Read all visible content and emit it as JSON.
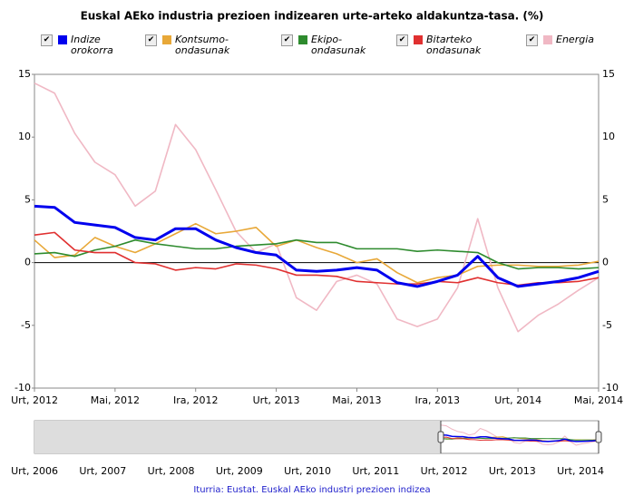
{
  "chart_data": {
    "type": "line",
    "title": "Euskal AEko industria prezioen indizearen urte-arteko aldakuntza-tasa. (%)",
    "categories": [
      "Urt, 2012",
      null,
      null,
      null,
      "Mai, 2012",
      null,
      null,
      null,
      "Ira, 2012",
      null,
      null,
      null,
      "Urt, 2013",
      null,
      null,
      null,
      "Mai, 2013",
      null,
      null,
      null,
      "Ira, 2013",
      null,
      null,
      null,
      "Urt, 2014",
      null,
      null,
      null,
      "Mai, 2014"
    ],
    "series": [
      {
        "name": "Indize orokorra",
        "color": "#0000ee",
        "values": [
          4.5,
          4.4,
          3.2,
          3.0,
          2.8,
          2.0,
          1.8,
          2.7,
          2.7,
          1.8,
          1.2,
          0.8,
          0.6,
          -0.6,
          -0.7,
          -0.6,
          -0.4,
          -0.6,
          -1.6,
          -1.9,
          -1.5,
          -1.0,
          0.5,
          -1.2,
          -1.9,
          -1.7,
          -1.5,
          -1.2,
          -0.7
        ]
      },
      {
        "name": "Kontsumo-ondasunak",
        "color": "#e8a838",
        "values": [
          1.8,
          0.4,
          0.6,
          2.0,
          1.3,
          0.8,
          1.5,
          2.3,
          3.1,
          2.3,
          2.5,
          2.8,
          1.3,
          1.8,
          1.2,
          0.7,
          0.0,
          0.3,
          -0.8,
          -1.6,
          -1.2,
          -1.0,
          -0.3,
          -0.2,
          -0.2,
          -0.3,
          -0.3,
          -0.2,
          0.1
        ]
      },
      {
        "name": "Ekipo-ondasunak",
        "color": "#2e8b2e",
        "values": [
          0.7,
          0.8,
          0.5,
          1.0,
          1.3,
          1.8,
          1.5,
          1.3,
          1.1,
          1.1,
          1.3,
          1.4,
          1.5,
          1.8,
          1.6,
          1.6,
          1.1,
          1.1,
          1.1,
          0.9,
          1.0,
          0.9,
          0.8,
          0.0,
          -0.5,
          -0.4,
          -0.4,
          -0.5,
          -0.4
        ]
      },
      {
        "name": "Bitarteko ondasunak",
        "color": "#e03030",
        "values": [
          2.2,
          2.4,
          1.0,
          0.8,
          0.8,
          0.0,
          -0.1,
          -0.6,
          -0.4,
          -0.5,
          -0.1,
          -0.2,
          -0.5,
          -1.0,
          -1.0,
          -1.1,
          -1.5,
          -1.6,
          -1.7,
          -1.7,
          -1.5,
          -1.6,
          -1.2,
          -1.6,
          -1.8,
          -1.6,
          -1.6,
          -1.5,
          -1.2
        ]
      },
      {
        "name": "Energia",
        "color": "#f0b8c4",
        "values": [
          14.3,
          13.5,
          10.3,
          8.0,
          7.0,
          4.5,
          5.7,
          11.0,
          9.0,
          5.8,
          2.5,
          0.8,
          1.5,
          -2.8,
          -3.8,
          -1.5,
          -1.0,
          -1.7,
          -4.5,
          -5.1,
          -4.5,
          -2.0,
          3.5,
          -2.0,
          -5.5,
          -4.2,
          -3.3,
          -2.2,
          -1.2
        ]
      }
    ],
    "ylim": [
      -10,
      15
    ],
    "yticks": [
      -10,
      -5,
      0,
      5,
      10,
      15
    ],
    "navigator": {
      "labels": [
        "Urt, 2006",
        "Urt, 2007",
        "Urt, 2008",
        "Urt, 2009",
        "Urt, 2010",
        "Urt, 2011",
        "Urt, 2012",
        "Urt, 2013",
        "Urt, 2014"
      ]
    },
    "source": "Iturria: Eustat. Euskal AEko industri prezioen indizea"
  }
}
